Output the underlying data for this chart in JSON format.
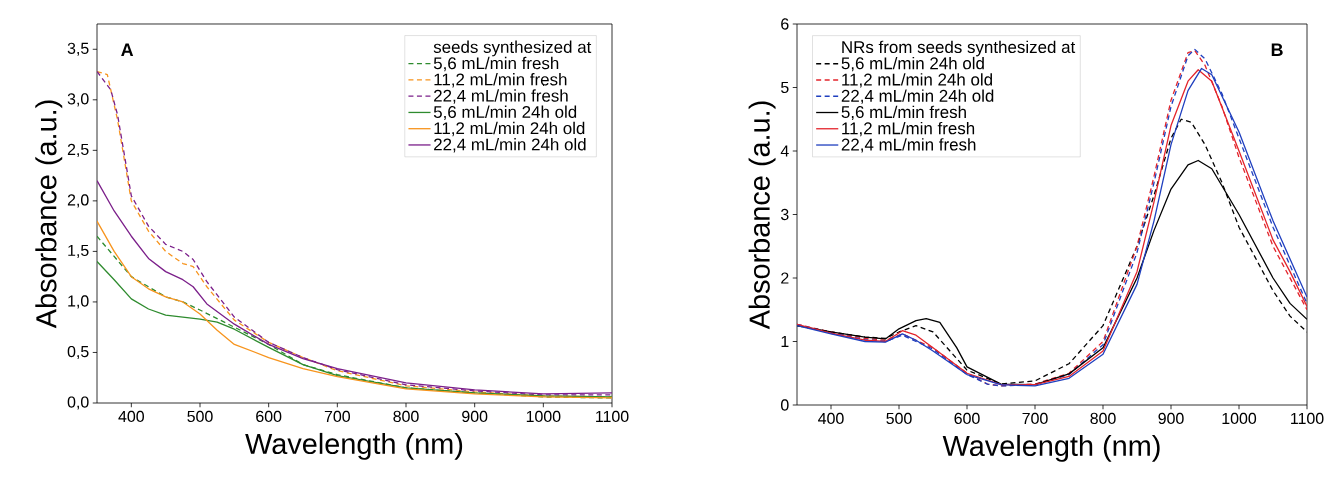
{
  "chart_data": [
    {
      "type": "line",
      "xlabel": "Wavelength (nm)",
      "ylabel": "Absorbance (a.u.)",
      "legend_title": "seeds synthesized at",
      "annotations": [
        "A"
      ],
      "xlim": [
        350,
        1100
      ],
      "ylim": [
        0,
        3.75
      ],
      "xticks": [
        400,
        500,
        600,
        700,
        800,
        900,
        1000,
        1100
      ],
      "yticks": [
        {
          "value": 0,
          "label": "0,0"
        },
        {
          "value": 0.5,
          "label": "0,5"
        },
        {
          "value": 1,
          "label": "1,0"
        },
        {
          "value": 1.5,
          "label": "1,5"
        },
        {
          "value": 2,
          "label": "2,0"
        },
        {
          "value": 2.5,
          "label": "2,5"
        },
        {
          "value": 3,
          "label": "3,0"
        },
        {
          "value": 3.5,
          "label": "3,5"
        }
      ],
      "legend": "top right",
      "grid": false,
      "marker": "none",
      "series": [
        {
          "name": "5,6 mL/min fresh",
          "color": "#2e8b2e",
          "line_style": "dashed",
          "x": [
            350,
            375,
            400,
            450,
            475,
            500,
            550,
            600,
            650,
            700,
            800,
            900,
            1000,
            1100
          ],
          "values": [
            1.65,
            1.45,
            1.25,
            1.05,
            1.0,
            0.92,
            0.75,
            0.58,
            0.38,
            0.28,
            0.15,
            0.1,
            0.06,
            0.05
          ]
        },
        {
          "name": "11,2 mL/min fresh",
          "color": "#f7941d",
          "line_style": "dashed",
          "x": [
            350,
            365,
            380,
            400,
            425,
            450,
            475,
            490,
            510,
            550,
            600,
            650,
            700,
            800,
            900,
            1000,
            1100
          ],
          "values": [
            3.28,
            3.25,
            2.8,
            2.0,
            1.7,
            1.5,
            1.38,
            1.35,
            1.15,
            0.82,
            0.6,
            0.45,
            0.32,
            0.17,
            0.11,
            0.07,
            0.06
          ]
        },
        {
          "name": "22,4 mL/min fresh",
          "color": "#7b1f8a",
          "line_style": "dashed",
          "x": [
            350,
            370,
            380,
            400,
            425,
            450,
            475,
            490,
            510,
            550,
            600,
            650,
            700,
            800,
            900,
            1000,
            1100
          ],
          "values": [
            3.28,
            3.1,
            2.85,
            2.05,
            1.75,
            1.57,
            1.5,
            1.42,
            1.2,
            0.85,
            0.6,
            0.45,
            0.33,
            0.18,
            0.12,
            0.08,
            0.08
          ]
        },
        {
          "name": "5,6 mL/min 24h old",
          "color": "#2e8b2e",
          "line_style": "solid",
          "x": [
            350,
            375,
            400,
            425,
            450,
            475,
            500,
            525,
            550,
            600,
            650,
            700,
            800,
            900,
            1000,
            1100
          ],
          "values": [
            1.4,
            1.22,
            1.03,
            0.93,
            0.87,
            0.85,
            0.83,
            0.8,
            0.73,
            0.55,
            0.38,
            0.27,
            0.15,
            0.1,
            0.07,
            0.06
          ]
        },
        {
          "name": "11,2 mL/min 24h old",
          "color": "#f7941d",
          "line_style": "solid",
          "x": [
            350,
            375,
            400,
            425,
            450,
            475,
            500,
            525,
            550,
            600,
            650,
            700,
            800,
            900,
            1000,
            1100
          ],
          "values": [
            1.8,
            1.5,
            1.25,
            1.13,
            1.05,
            1.0,
            0.88,
            0.72,
            0.58,
            0.45,
            0.34,
            0.26,
            0.14,
            0.09,
            0.06,
            0.05
          ]
        },
        {
          "name": "22,4 mL/min 24h old",
          "color": "#7b1f8a",
          "line_style": "solid",
          "x": [
            350,
            375,
            400,
            425,
            450,
            475,
            490,
            510,
            550,
            600,
            650,
            700,
            800,
            900,
            1000,
            1100
          ],
          "values": [
            2.2,
            1.9,
            1.65,
            1.43,
            1.3,
            1.22,
            1.15,
            0.98,
            0.78,
            0.58,
            0.44,
            0.34,
            0.2,
            0.13,
            0.09,
            0.1
          ]
        }
      ]
    },
    {
      "type": "line",
      "xlabel": "Wavelength (nm)",
      "ylabel": "Absorbance (a.u.)",
      "legend_title": "NRs from seeds synthesized at",
      "annotations": [
        "B"
      ],
      "xlim": [
        350,
        1100
      ],
      "ylim": [
        0,
        6
      ],
      "xticks": [
        400,
        500,
        600,
        700,
        800,
        900,
        1000,
        1100
      ],
      "yticks": [
        0,
        1,
        2,
        3,
        4,
        5,
        6
      ],
      "legend": "top left",
      "grid": false,
      "marker": "none",
      "series": [
        {
          "name": "5,6 mL/min 24h old",
          "color": "#000000",
          "line_style": "dashed",
          "x": [
            350,
            400,
            450,
            480,
            500,
            525,
            550,
            575,
            600,
            650,
            700,
            750,
            800,
            850,
            875,
            900,
            915,
            930,
            950,
            975,
            1000,
            1050,
            1075,
            1100
          ],
          "values": [
            1.25,
            1.15,
            1.07,
            1.05,
            1.15,
            1.25,
            1.15,
            0.85,
            0.55,
            0.33,
            0.38,
            0.65,
            1.25,
            2.5,
            3.3,
            4.2,
            4.5,
            4.45,
            4.1,
            3.5,
            2.8,
            1.8,
            1.4,
            1.15
          ]
        },
        {
          "name": "11,2 mL/min 24h old",
          "color": "#e3242b",
          "line_style": "dashed",
          "x": [
            350,
            400,
            450,
            480,
            505,
            525,
            550,
            600,
            630,
            650,
            700,
            750,
            800,
            850,
            875,
            900,
            925,
            935,
            950,
            975,
            1000,
            1050,
            1075,
            1100
          ],
          "values": [
            1.27,
            1.15,
            1.05,
            1.02,
            1.12,
            1.02,
            0.9,
            0.5,
            0.33,
            0.3,
            0.33,
            0.5,
            1.0,
            2.5,
            3.6,
            4.8,
            5.55,
            5.58,
            5.35,
            4.7,
            3.9,
            2.5,
            2.0,
            1.5
          ]
        },
        {
          "name": "22,4 mL/min 24h old",
          "color": "#1f3fbf",
          "line_style": "dashed",
          "x": [
            350,
            400,
            450,
            480,
            505,
            525,
            550,
            600,
            630,
            650,
            700,
            750,
            800,
            850,
            875,
            900,
            925,
            935,
            950,
            975,
            1000,
            1050,
            1075,
            1100
          ],
          "values": [
            1.27,
            1.14,
            1.03,
            1.0,
            1.1,
            1.0,
            0.88,
            0.48,
            0.33,
            0.3,
            0.32,
            0.48,
            0.95,
            2.4,
            3.5,
            4.7,
            5.5,
            5.6,
            5.45,
            4.9,
            4.2,
            2.8,
            2.2,
            1.6
          ]
        },
        {
          "name": "5,6 mL/min fresh",
          "color": "#000000",
          "line_style": "solid",
          "x": [
            350,
            400,
            450,
            480,
            500,
            525,
            540,
            560,
            585,
            600,
            650,
            700,
            750,
            800,
            850,
            875,
            900,
            925,
            940,
            960,
            1000,
            1050,
            1075,
            1100
          ],
          "values": [
            1.25,
            1.15,
            1.07,
            1.04,
            1.2,
            1.33,
            1.36,
            1.3,
            0.9,
            0.6,
            0.33,
            0.32,
            0.49,
            0.9,
            2.0,
            2.75,
            3.4,
            3.78,
            3.85,
            3.72,
            3.0,
            2.0,
            1.6,
            1.35
          ]
        },
        {
          "name": "11,2 mL/min fresh",
          "color": "#e3242b",
          "line_style": "solid",
          "x": [
            350,
            400,
            450,
            480,
            505,
            525,
            550,
            600,
            650,
            700,
            750,
            800,
            850,
            875,
            900,
            925,
            940,
            960,
            1000,
            1050,
            1075,
            1100
          ],
          "values": [
            1.27,
            1.13,
            1.02,
            1.0,
            1.17,
            1.1,
            0.9,
            0.5,
            0.32,
            0.32,
            0.45,
            0.85,
            2.1,
            3.2,
            4.4,
            5.1,
            5.28,
            5.1,
            4.0,
            2.6,
            2.1,
            1.55
          ]
        },
        {
          "name": "22,4 mL/min fresh",
          "color": "#1f3fbf",
          "line_style": "solid",
          "x": [
            350,
            400,
            450,
            480,
            505,
            525,
            550,
            600,
            650,
            700,
            750,
            800,
            850,
            875,
            900,
            925,
            945,
            960,
            1000,
            1050,
            1075,
            1100
          ],
          "values": [
            1.25,
            1.12,
            1.0,
            0.99,
            1.12,
            1.02,
            0.85,
            0.48,
            0.32,
            0.3,
            0.42,
            0.8,
            1.9,
            2.9,
            4.1,
            4.95,
            5.3,
            5.2,
            4.3,
            2.9,
            2.3,
            1.7
          ]
        }
      ]
    }
  ]
}
